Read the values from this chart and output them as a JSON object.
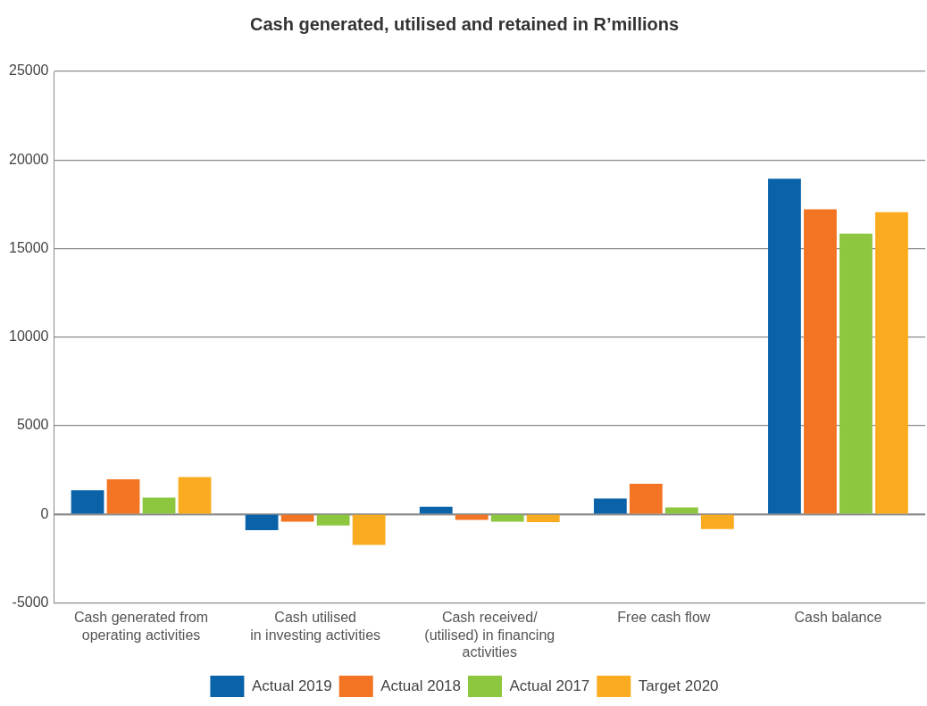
{
  "chart_data": {
    "type": "bar",
    "title": "Cash generated, utilised and retained in R’millions",
    "categories": [
      "Cash generated from\noperating activities",
      "Cash utilised\nin investing activities",
      "Cash received/\n(utilised) in financing\nactivities",
      "Free cash flow",
      "Cash balance"
    ],
    "series": [
      {
        "name": "Actual 2019",
        "color": "#0a63a8",
        "values": [
          1350,
          -900,
          420,
          890,
          18940
        ]
      },
      {
        "name": "Actual 2018",
        "color": "#f37423",
        "values": [
          1970,
          -420,
          -320,
          1720,
          17220
        ]
      },
      {
        "name": "Actual 2017",
        "color": "#8dc63f",
        "values": [
          940,
          -640,
          -420,
          390,
          15840
        ]
      },
      {
        "name": "Target 2020",
        "color": "#fbab1f",
        "values": [
          2100,
          -1730,
          -440,
          -840,
          17050
        ]
      }
    ],
    "ylim": [
      -5000,
      25000
    ],
    "yticks": [
      -5000,
      0,
      5000,
      10000,
      15000,
      20000,
      25000
    ],
    "grid": "y",
    "legend": "bottom"
  }
}
